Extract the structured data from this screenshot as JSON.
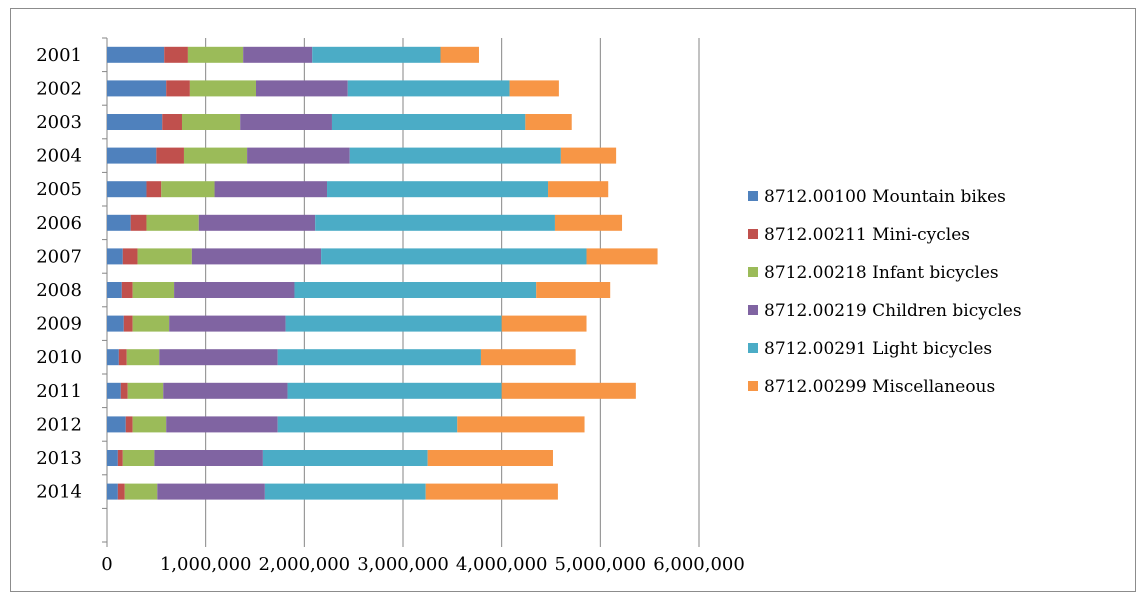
{
  "chart_data": {
    "type": "bar",
    "orientation": "horizontal",
    "stacked": true,
    "title": "",
    "xlabel": "",
    "ylabel": "",
    "xlim": [
      0,
      6000000
    ],
    "x_ticks": [
      "0",
      "1,000,000",
      "2,000,000",
      "3,000,000",
      "4,000,000",
      "5,000,000",
      "6,000,000"
    ],
    "x_tick_values": [
      0,
      1000000,
      2000000,
      3000000,
      4000000,
      5000000,
      6000000
    ],
    "grid": "vertical",
    "legend_position": "right",
    "categories": [
      "2001",
      "2002",
      "2003",
      "2004",
      "2005",
      "2006",
      "2007",
      "2008",
      "2009",
      "2010",
      "2011",
      "2012",
      "2013",
      "2014"
    ],
    "series": [
      {
        "name": "8712.00100 Mountain bikes",
        "color": "#4f81bd",
        "values": [
          580000,
          600000,
          560000,
          500000,
          400000,
          240000,
          160000,
          150000,
          170000,
          120000,
          140000,
          190000,
          110000,
          110000
        ]
      },
      {
        "name": "8712.00211 Mini-cycles",
        "color": "#c0504d",
        "values": [
          240000,
          240000,
          200000,
          280000,
          150000,
          160000,
          150000,
          110000,
          90000,
          80000,
          70000,
          70000,
          50000,
          70000
        ]
      },
      {
        "name": "8712.00218 Infant bicycles",
        "color": "#9bbb59",
        "values": [
          560000,
          670000,
          590000,
          640000,
          540000,
          530000,
          550000,
          420000,
          370000,
          330000,
          360000,
          340000,
          320000,
          330000
        ]
      },
      {
        "name": "8712.00219 Children bicycles",
        "color": "#8064a2",
        "values": [
          700000,
          930000,
          930000,
          1040000,
          1140000,
          1180000,
          1310000,
          1220000,
          1180000,
          1200000,
          1260000,
          1130000,
          1100000,
          1090000
        ]
      },
      {
        "name": "8712.00291 Light bicycles",
        "color": "#4bacc6",
        "values": [
          1300000,
          1640000,
          1960000,
          2140000,
          2240000,
          2430000,
          2690000,
          2450000,
          2190000,
          2060000,
          2170000,
          1820000,
          1670000,
          1630000
        ]
      },
      {
        "name": "8712.00299 Miscellaneous",
        "color": "#f79646",
        "values": [
          390000,
          500000,
          470000,
          560000,
          610000,
          680000,
          720000,
          750000,
          860000,
          960000,
          1360000,
          1290000,
          1270000,
          1340000
        ]
      }
    ]
  }
}
